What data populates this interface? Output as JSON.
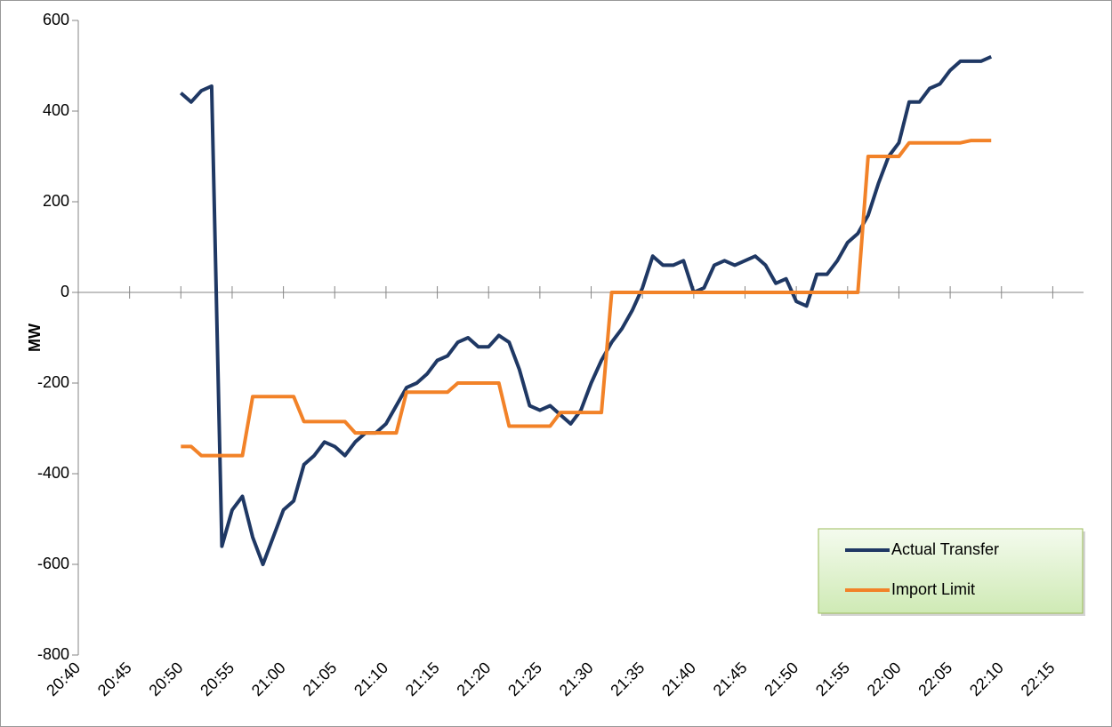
{
  "chart_data": {
    "type": "line",
    "ylabel": "MW",
    "x": [
      "20:50",
      "20:51",
      "20:52",
      "20:53",
      "20:54",
      "20:55",
      "20:56",
      "20:57",
      "20:58",
      "20:59",
      "21:00",
      "21:01",
      "21:02",
      "21:03",
      "21:04",
      "21:05",
      "21:06",
      "21:07",
      "21:08",
      "21:09",
      "21:10",
      "21:11",
      "21:12",
      "21:13",
      "21:14",
      "21:15",
      "21:16",
      "21:17",
      "21:18",
      "21:19",
      "21:20",
      "21:21",
      "21:22",
      "21:23",
      "21:24",
      "21:25",
      "21:26",
      "21:27",
      "21:28",
      "21:29",
      "21:30",
      "21:31",
      "21:32",
      "21:33",
      "21:34",
      "21:35",
      "21:36",
      "21:37",
      "21:38",
      "21:39",
      "21:40",
      "21:41",
      "21:42",
      "21:43",
      "21:44",
      "21:45",
      "21:46",
      "21:47",
      "21:48",
      "21:49",
      "21:50",
      "21:51",
      "21:52",
      "21:53",
      "21:54",
      "21:55",
      "21:56",
      "21:57",
      "21:58",
      "21:59",
      "22:00",
      "22:01",
      "22:02",
      "22:03",
      "22:04",
      "22:05",
      "22:06",
      "22:07",
      "22:08",
      "22:09"
    ],
    "series": [
      {
        "name": "Actual Transfer",
        "color": "#1f3864",
        "values": [
          440,
          420,
          445,
          455,
          -560,
          -480,
          -450,
          -540,
          -600,
          -540,
          -480,
          -460,
          -380,
          -360,
          -330,
          -340,
          -360,
          -330,
          -310,
          -310,
          -290,
          -250,
          -210,
          -200,
          -180,
          -150,
          -140,
          -110,
          -100,
          -120,
          -120,
          -95,
          -110,
          -170,
          -250,
          -260,
          -250,
          -270,
          -290,
          -260,
          -200,
          -150,
          -110,
          -80,
          -40,
          10,
          80,
          60,
          60,
          70,
          0,
          10,
          60,
          70,
          60,
          70,
          80,
          60,
          20,
          30,
          -20,
          -30,
          40,
          40,
          70,
          110,
          130,
          170,
          240,
          300,
          330,
          420,
          420,
          450,
          460,
          490,
          510,
          510,
          510,
          520
        ]
      },
      {
        "name": "Import Limit",
        "color": "#f28228",
        "values": [
          -340,
          -340,
          -360,
          -360,
          -360,
          -360,
          -360,
          -230,
          -230,
          -230,
          -230,
          -230,
          -285,
          -285,
          -285,
          -285,
          -285,
          -310,
          -310,
          -310,
          -310,
          -310,
          -220,
          -220,
          -220,
          -220,
          -220,
          -200,
          -200,
          -200,
          -200,
          -200,
          -295,
          -295,
          -295,
          -295,
          -295,
          -265,
          -265,
          -265,
          -265,
          -265,
          0,
          0,
          0,
          0,
          0,
          0,
          0,
          0,
          0,
          0,
          0,
          0,
          0,
          0,
          0,
          0,
          0,
          0,
          0,
          0,
          0,
          0,
          0,
          0,
          0,
          300,
          300,
          300,
          300,
          330,
          330,
          330,
          330,
          330,
          330,
          335,
          335,
          335
        ]
      }
    ],
    "xlim": [
      "20:40",
      "22:18"
    ],
    "xticks": [
      "20:40",
      "20:45",
      "20:50",
      "20:55",
      "21:00",
      "21:05",
      "21:10",
      "21:15",
      "21:20",
      "21:25",
      "21:30",
      "21:35",
      "21:40",
      "21:45",
      "21:50",
      "21:55",
      "22:00",
      "22:05",
      "22:10",
      "22:15"
    ],
    "ylim": [
      -800,
      600
    ],
    "yticks": [
      -800,
      -600,
      -400,
      -200,
      0,
      200,
      400,
      600
    ],
    "legend": "bottom-right"
  }
}
